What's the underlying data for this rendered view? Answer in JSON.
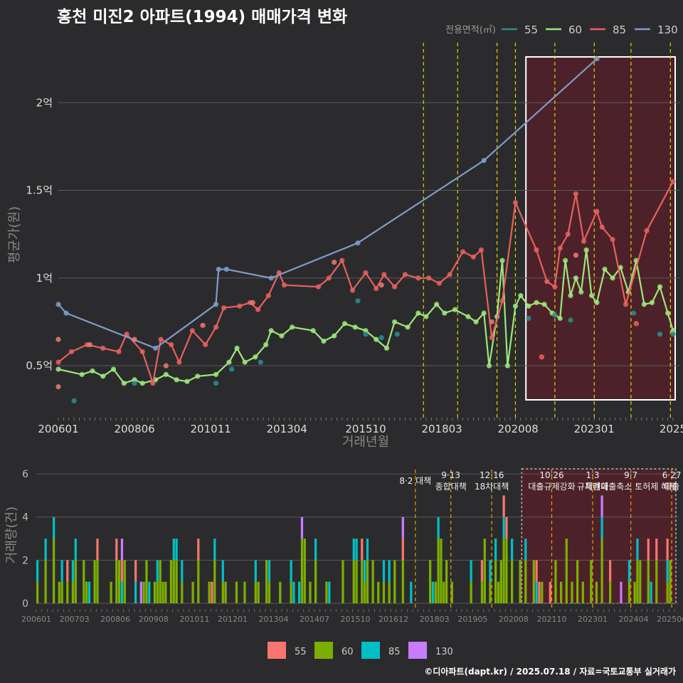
{
  "title": "홍천 미진2 아파트(1994) 매매가격 변화",
  "credit": "©디아파트(dapt.kr) / 2025.07.18 / 자료=국토교통부 실거래가",
  "legend_top": {
    "title": "전용면적(㎡)",
    "items": [
      "55",
      "60",
      "85",
      "130"
    ]
  },
  "legend_bottom": {
    "items": [
      "55",
      "60",
      "85",
      "130"
    ]
  },
  "colors": {
    "s55": "#f07a72",
    "s60": "#9ee67a",
    "s85": "#2a8f90",
    "s130": "#7f9cc8",
    "line85": "#e8605e",
    "bar55": "#f8766d",
    "bar60": "#7cae00",
    "bar85": "#00bfc4",
    "bar130": "#c77cff",
    "policy": "#e8d000",
    "policy_bottom": "#e8a000",
    "highlight": "#5a1f28"
  },
  "chart_data": [
    {
      "type": "line",
      "title": "홍천 미진2 아파트(1994) 매매가격 변화",
      "xlabel": "거래년월",
      "ylabel": "평균가(원)",
      "x_ticks": [
        "200601",
        "200806",
        "201011",
        "201304",
        "201510",
        "201803",
        "202008",
        "202301",
        "2025"
      ],
      "y_ticks": [
        {
          "v": 0.5,
          "label": "0.5억"
        },
        {
          "v": 1.0,
          "label": "1억"
        },
        {
          "v": 1.5,
          "label": "1.5억"
        },
        {
          "v": 2.0,
          "label": "2억"
        }
      ],
      "ylim": [
        0.2,
        2.35
      ],
      "unit": "억원",
      "highlight_range": [
        "2020-11",
        "2025-07"
      ],
      "policy_dates": [
        "2017-08",
        "2018-09",
        "2019-12",
        "2020-07",
        "2021-10",
        "2023-01",
        "2024-03",
        "2025-06"
      ],
      "series": [
        {
          "name": "60",
          "line": true,
          "points": [
            [
              "2006-01",
              0.48
            ],
            [
              "2006-10",
              0.45
            ],
            [
              "2007-02",
              0.47
            ],
            [
              "2007-06",
              0.44
            ],
            [
              "2007-10",
              0.48
            ],
            [
              "2008-02",
              0.4
            ],
            [
              "2008-06",
              0.42
            ],
            [
              "2008-09",
              0.4
            ],
            [
              "2009-02",
              0.42
            ],
            [
              "2009-06",
              0.45
            ],
            [
              "2009-10",
              0.42
            ],
            [
              "2010-02",
              0.41
            ],
            [
              "2010-06",
              0.44
            ],
            [
              "2011-01",
              0.45
            ],
            [
              "2011-06",
              0.52
            ],
            [
              "2011-09",
              0.6
            ],
            [
              "2011-12",
              0.52
            ],
            [
              "2012-04",
              0.55
            ],
            [
              "2012-08",
              0.62
            ],
            [
              "2012-10",
              0.7
            ],
            [
              "2013-02",
              0.67
            ],
            [
              "2013-06",
              0.72
            ],
            [
              "2014-02",
              0.7
            ],
            [
              "2014-06",
              0.64
            ],
            [
              "2014-10",
              0.67
            ],
            [
              "2015-02",
              0.74
            ],
            [
              "2015-06",
              0.72
            ],
            [
              "2015-10",
              0.7
            ],
            [
              "2016-02",
              0.65
            ],
            [
              "2016-06",
              0.6
            ],
            [
              "2016-09",
              0.75
            ],
            [
              "2017-02",
              0.72
            ],
            [
              "2017-06",
              0.8
            ],
            [
              "2017-09",
              0.78
            ],
            [
              "2018-01",
              0.85
            ],
            [
              "2018-04",
              0.8
            ],
            [
              "2018-08",
              0.82
            ],
            [
              "2019-01",
              0.78
            ],
            [
              "2019-04",
              0.75
            ],
            [
              "2019-07",
              0.8
            ],
            [
              "2019-09",
              0.5
            ],
            [
              "2019-12",
              0.78
            ],
            [
              "2020-02",
              1.1
            ],
            [
              "2020-04",
              0.5
            ],
            [
              "2020-07",
              0.84
            ],
            [
              "2020-09",
              0.9
            ],
            [
              "2020-12",
              0.84
            ],
            [
              "2021-03",
              0.86
            ],
            [
              "2021-06",
              0.85
            ],
            [
              "2021-09",
              0.8
            ],
            [
              "2021-12",
              0.77
            ],
            [
              "2022-02",
              1.1
            ],
            [
              "2022-04",
              0.9
            ],
            [
              "2022-06",
              1.0
            ],
            [
              "2022-08",
              0.92
            ],
            [
              "2022-10",
              1.16
            ],
            [
              "2022-12",
              0.9
            ],
            [
              "2023-02",
              0.86
            ],
            [
              "2023-05",
              1.05
            ],
            [
              "2023-08",
              1.0
            ],
            [
              "2023-11",
              1.06
            ],
            [
              "2024-02",
              0.92
            ],
            [
              "2024-05",
              1.1
            ],
            [
              "2024-08",
              0.85
            ],
            [
              "2024-11",
              0.86
            ],
            [
              "2025-02",
              0.95
            ],
            [
              "2025-05",
              0.8
            ],
            [
              "2025-07",
              0.7
            ]
          ]
        },
        {
          "name": "85",
          "line": true,
          "points": [
            [
              "2006-01",
              0.52
            ],
            [
              "2006-06",
              0.58
            ],
            [
              "2006-12",
              0.62
            ],
            [
              "2007-06",
              0.6
            ],
            [
              "2007-12",
              0.58
            ],
            [
              "2008-03",
              0.68
            ],
            [
              "2008-09",
              0.58
            ],
            [
              "2009-01",
              0.4
            ],
            [
              "2009-04",
              0.65
            ],
            [
              "2009-08",
              0.62
            ],
            [
              "2009-11",
              0.52
            ],
            [
              "2010-04",
              0.7
            ],
            [
              "2010-09",
              0.62
            ],
            [
              "2011-01",
              0.72
            ],
            [
              "2011-04",
              0.83
            ],
            [
              "2011-10",
              0.84
            ],
            [
              "2012-02",
              0.86
            ],
            [
              "2012-05",
              0.82
            ],
            [
              "2012-09",
              0.9
            ],
            [
              "2013-01",
              1.03
            ],
            [
              "2013-03",
              0.96
            ],
            [
              "2014-04",
              0.95
            ],
            [
              "2014-08",
              1.0
            ],
            [
              "2015-01",
              1.1
            ],
            [
              "2015-05",
              0.93
            ],
            [
              "2015-10",
              1.03
            ],
            [
              "2016-02",
              0.94
            ],
            [
              "2016-05",
              1.02
            ],
            [
              "2016-09",
              0.95
            ],
            [
              "2017-01",
              1.02
            ],
            [
              "2017-06",
              1.0
            ],
            [
              "2017-10",
              1.0
            ],
            [
              "2018-02",
              0.97
            ],
            [
              "2018-06",
              1.02
            ],
            [
              "2018-11",
              1.15
            ],
            [
              "2019-03",
              1.12
            ],
            [
              "2019-06",
              1.16
            ],
            [
              "2019-10",
              0.66
            ],
            [
              "2020-02",
              0.87
            ],
            [
              "2020-07",
              1.43
            ],
            [
              "2021-03",
              1.16
            ],
            [
              "2021-07",
              0.98
            ],
            [
              "2021-10",
              0.95
            ],
            [
              "2021-12",
              1.17
            ],
            [
              "2022-03",
              1.25
            ],
            [
              "2022-06",
              1.48
            ],
            [
              "2022-09",
              1.21
            ],
            [
              "2023-02",
              1.38
            ],
            [
              "2023-04",
              1.29
            ],
            [
              "2023-08",
              1.22
            ],
            [
              "2024-01",
              0.85
            ],
            [
              "2024-09",
              1.27
            ],
            [
              "2025-07",
              1.55
            ]
          ]
        },
        {
          "name": "130",
          "line": true,
          "points": [
            [
              "2006-01",
              0.85
            ],
            [
              "2006-04",
              0.8
            ],
            [
              "2009-02",
              0.6
            ],
            [
              "2011-01",
              0.85
            ],
            [
              "2011-02",
              1.05
            ],
            [
              "2011-05",
              1.05
            ],
            [
              "2012-10",
              1.0
            ],
            [
              "2015-07",
              1.2
            ],
            [
              "2019-07",
              1.67
            ],
            [
              "2023-02",
              2.25
            ]
          ]
        },
        {
          "name": "55",
          "line": false,
          "points": [
            [
              "2006-01",
              0.65
            ],
            [
              "2006-01",
              0.38
            ],
            [
              "2007-01",
              0.62
            ],
            [
              "2008-06",
              0.65
            ],
            [
              "2009-06",
              0.5
            ],
            [
              "2010-08",
              0.73
            ],
            [
              "2012-03",
              0.86
            ],
            [
              "2014-10",
              1.09
            ],
            [
              "2016-04",
              0.96
            ],
            [
              "2019-10",
              0.75
            ],
            [
              "2021-05",
              0.55
            ],
            [
              "2022-06",
              1.13
            ],
            [
              "2024-05",
              0.74
            ]
          ]
        },
        {
          "name": "85-scatter",
          "line": false,
          "points": [
            [
              "2006-07",
              0.3
            ],
            [
              "2008-06",
              0.4
            ],
            [
              "2011-01",
              0.4
            ],
            [
              "2011-07",
              0.48
            ],
            [
              "2012-06",
              0.52
            ],
            [
              "2015-07",
              0.87
            ],
            [
              "2015-10",
              0.68
            ],
            [
              "2016-04",
              0.66
            ],
            [
              "2016-10",
              0.68
            ],
            [
              "2020-12",
              0.77
            ],
            [
              "2021-10",
              0.79
            ],
            [
              "2022-04",
              0.76
            ],
            [
              "2024-04",
              0.8
            ],
            [
              "2025-02",
              0.68
            ],
            [
              "2025-07",
              0.68
            ]
          ]
        }
      ]
    },
    {
      "type": "bar",
      "ylabel": "거래량(건)",
      "x_ticks": [
        "200601",
        "200703",
        "200806",
        "200908",
        "201011",
        "201201",
        "201304",
        "201407",
        "201510",
        "201612",
        "201803",
        "201905",
        "202008",
        "202110",
        "202301",
        "202404",
        "202506"
      ],
      "y_ticks": [
        0,
        2,
        4,
        6
      ],
      "ylim": [
        0,
        6.2
      ],
      "highlight_range": [
        "2020-11",
        "2025-07"
      ],
      "policy_labels": [
        {
          "date": "2017-08",
          "lines": [
            "8·2 대책"
          ]
        },
        {
          "date": "2018-09",
          "lines": [
            "9·13",
            "종합대책"
          ]
        },
        {
          "date": "2019-12",
          "lines": [
            "12·16",
            "18차대책"
          ]
        },
        {
          "date": "2021-10",
          "lines": [
            "10·26",
            "대출규제강화"
          ]
        },
        {
          "date": "2023-01",
          "lines": [
            "1·3",
            "규제완화"
          ]
        },
        {
          "date": "2024-03",
          "lines": [
            "9·7",
            "특례대출축소 토허제 해제"
          ]
        },
        {
          "date": "2025-06",
          "lines": [
            "6·27",
            "대출"
          ]
        }
      ]
    }
  ]
}
